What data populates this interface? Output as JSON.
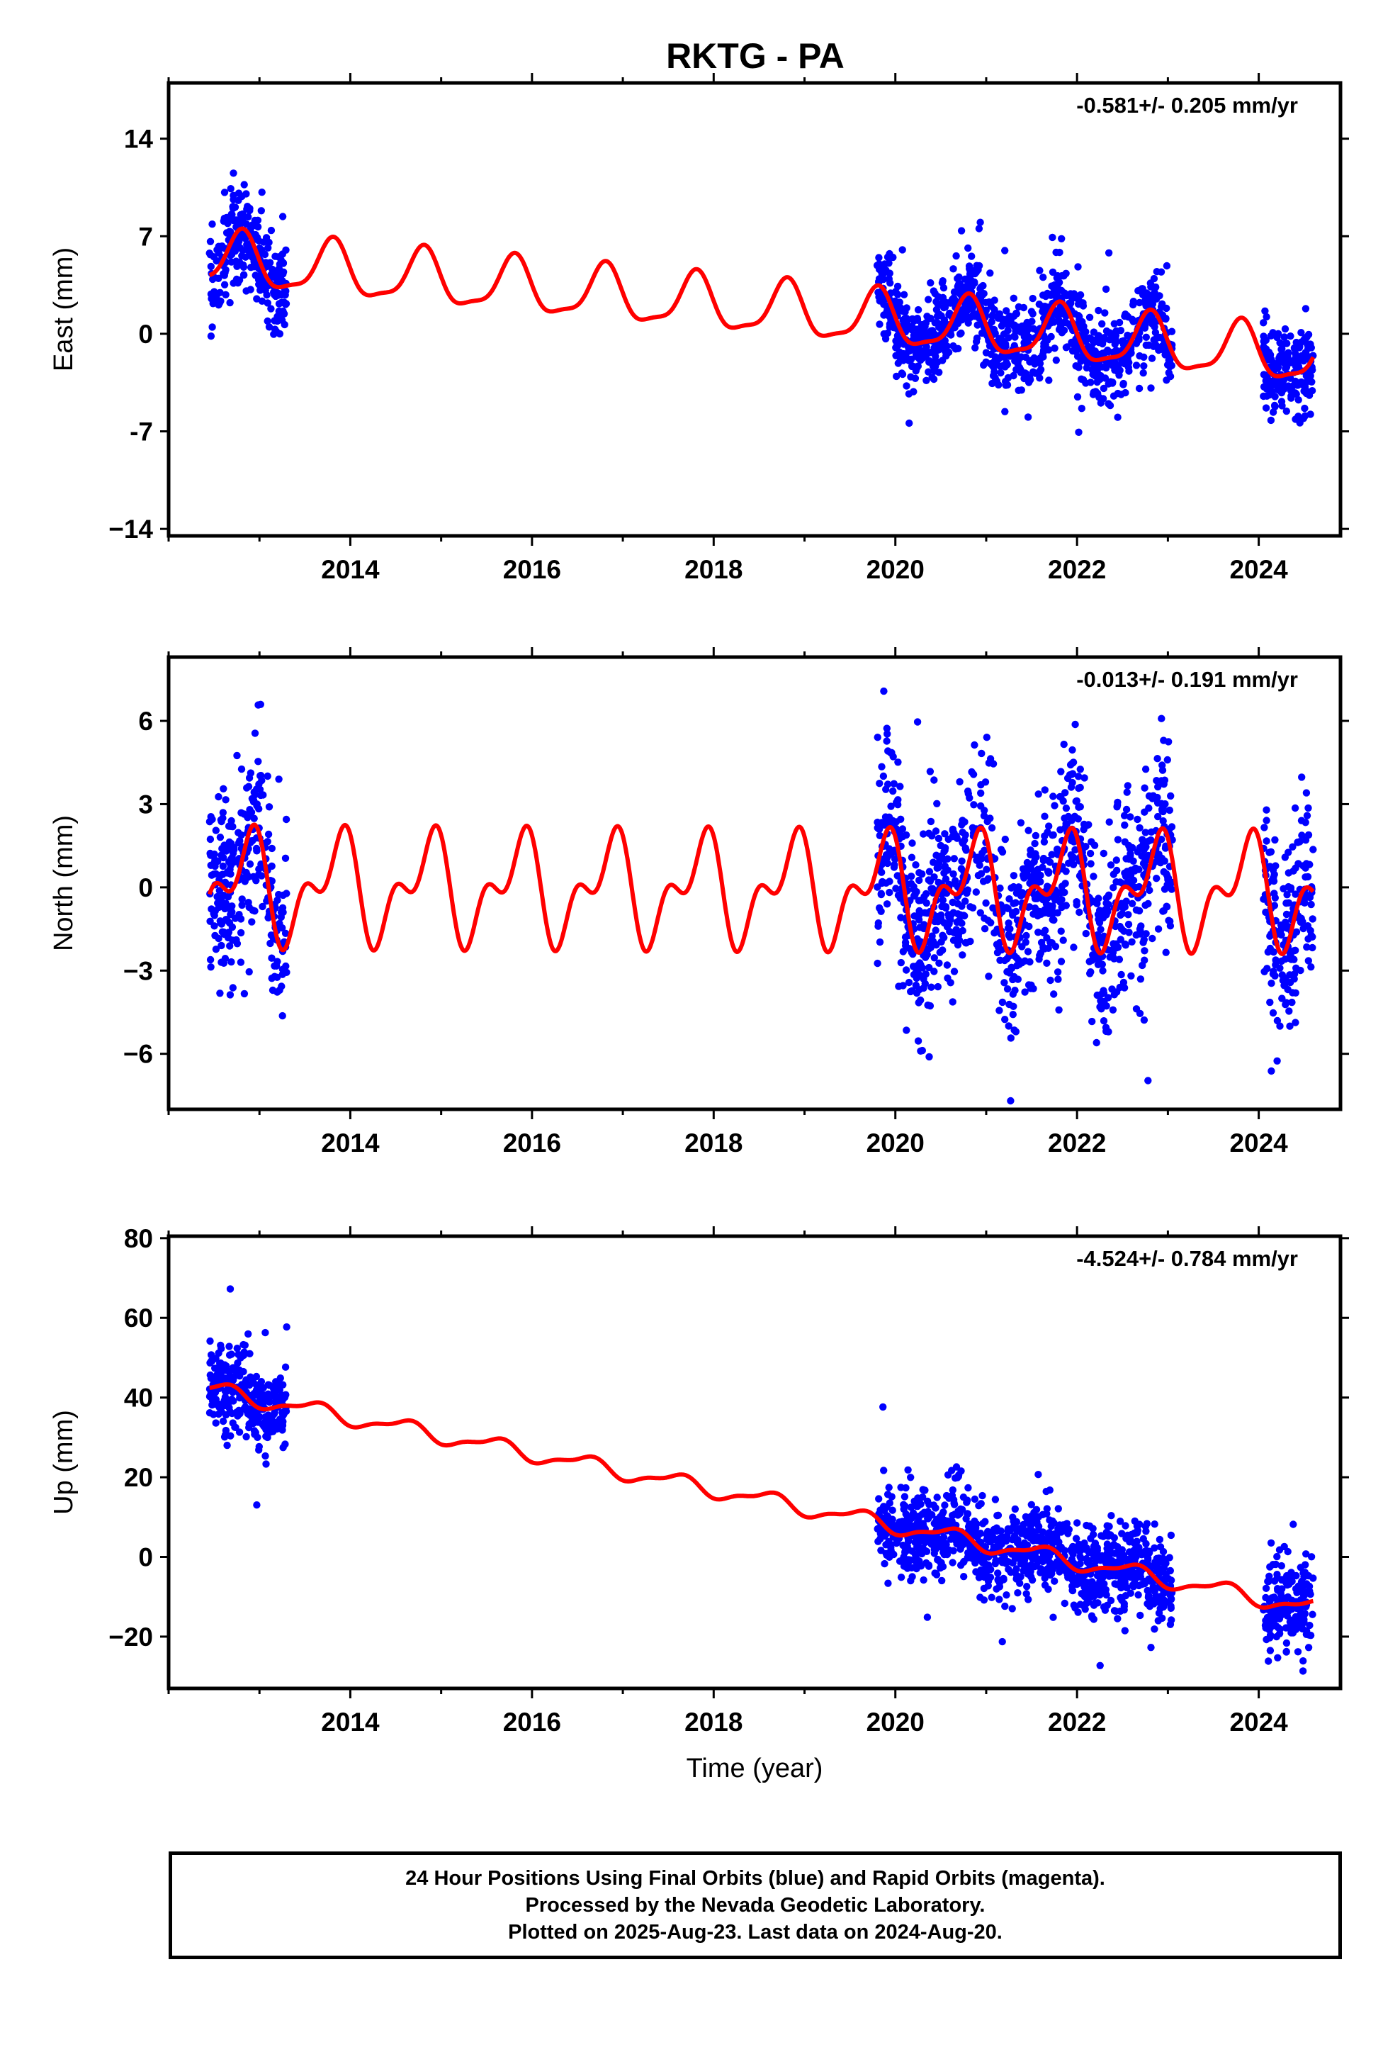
{
  "title": "RKTG - PA",
  "colors": {
    "final_orbits": "#0000ff",
    "model": "#ff0000",
    "axes": "#000000"
  },
  "chart_data": [
    {
      "type": "scatter",
      "panel": "east",
      "ylabel": "East (mm)",
      "rate_label": "-0.581+/- 0.205 mm/yr",
      "xlim": [
        2012.0,
        2024.9
      ],
      "ylim": [
        -14.5,
        18
      ],
      "yticks": [
        14,
        7,
        0,
        -7,
        -14
      ],
      "ytick_labels": [
        "14",
        "7",
        "0",
        "-7",
        "−14"
      ],
      "xticks": [
        2014,
        2016,
        2018,
        2020,
        2022,
        2024
      ],
      "xtick_labels": [
        "2014",
        "2016",
        "2018",
        "2020",
        "2022",
        "2024"
      ],
      "model": {
        "intercept": 5.0,
        "rate": -0.581,
        "t0": 2013.0,
        "annual_amp": 1.9,
        "annual_phase": 0.55,
        "semiannual_amp": 0.55,
        "semiannual_phase": 0.2
      },
      "data_spans": [
        [
          2012.45,
          2013.3
        ],
        [
          2019.8,
          2023.05
        ],
        [
          2024.05,
          2024.6
        ]
      ],
      "scatter_sigma": 1.6,
      "series": [
        {
          "label": "Final Orbits",
          "color": "#0000ff",
          "marker": "dot"
        },
        {
          "label": "Model",
          "color": "#ff0000",
          "marker": "line"
        }
      ]
    },
    {
      "type": "scatter",
      "panel": "north",
      "ylabel": "North (mm)",
      "rate_label": "-0.013+/- 0.191 mm/yr",
      "xlim": [
        2012.0,
        2024.9
      ],
      "ylim": [
        -8,
        8.3
      ],
      "yticks": [
        6,
        3,
        0,
        -3,
        -6
      ],
      "ytick_labels": [
        "6",
        "3",
        "0",
        "−3",
        "−6"
      ],
      "xticks": [
        2014,
        2016,
        2018,
        2020,
        2022,
        2024
      ],
      "xtick_labels": [
        "2014",
        "2016",
        "2018",
        "2020",
        "2022",
        "2024"
      ],
      "model": {
        "intercept": 0.0,
        "rate": -0.013,
        "t0": 2013.0,
        "annual_amp": 1.55,
        "annual_phase": 0.6,
        "semiannual_amp": 1.05,
        "semiannual_phase": 0.35
      },
      "data_spans": [
        [
          2012.45,
          2013.3
        ],
        [
          2019.8,
          2023.05
        ],
        [
          2024.05,
          2024.6
        ]
      ],
      "scatter_sigma": 1.7,
      "series": [
        {
          "label": "Final Orbits",
          "color": "#0000ff",
          "marker": "dot"
        },
        {
          "label": "Model",
          "color": "#ff0000",
          "marker": "line"
        }
      ]
    },
    {
      "type": "scatter",
      "panel": "up",
      "ylabel": "Up (mm)",
      "rate_label": "-4.524+/- 0.784 mm/yr",
      "xlabel": "Time (year)",
      "xlim": [
        2012.0,
        2024.9
      ],
      "ylim": [
        -33,
        80.5
      ],
      "yticks": [
        80,
        60,
        40,
        20,
        0,
        -20
      ],
      "ytick_labels": [
        "80",
        "60",
        "40",
        "20",
        "0",
        "−20"
      ],
      "xticks": [
        2014,
        2016,
        2018,
        2020,
        2022,
        2024
      ],
      "xtick_labels": [
        "2014",
        "2016",
        "2018",
        "2020",
        "2022",
        "2024"
      ],
      "model": {
        "intercept": 39.5,
        "rate": -4.524,
        "t0": 2013.0,
        "annual_amp": 1.9,
        "annual_phase": 0.35,
        "semiannual_amp": 0.7,
        "semiannual_phase": 0.1
      },
      "data_spans": [
        [
          2012.45,
          2013.3
        ],
        [
          2019.8,
          2023.05
        ],
        [
          2024.05,
          2024.6
        ]
      ],
      "scatter_sigma": 5.5,
      "series": [
        {
          "label": "Final Orbits",
          "color": "#0000ff",
          "marker": "dot"
        },
        {
          "label": "Model",
          "color": "#ff0000",
          "marker": "line"
        }
      ]
    }
  ],
  "caption": {
    "line1": "24 Hour Positions Using Final Orbits (blue) and Rapid Orbits (magenta).",
    "line2": "Processed by the Nevada Geodetic Laboratory.",
    "line3": "Plotted on 2025-Aug-23. Last data on 2024-Aug-20."
  }
}
